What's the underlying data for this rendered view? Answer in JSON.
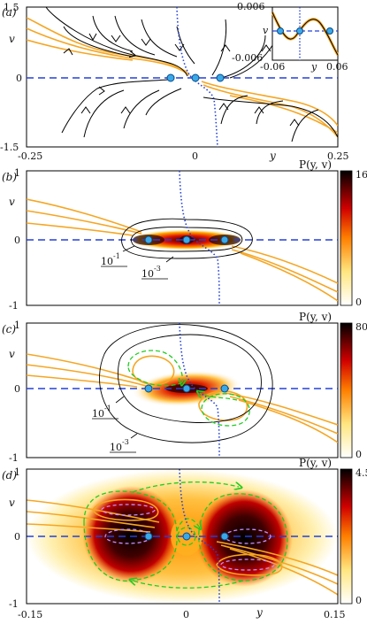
{
  "figure": {
    "panels": [
      {
        "id": "a",
        "label": "(a)",
        "ylabel": "v",
        "xlabel": "y",
        "x_ticks": [
          "-0.25",
          "0",
          "0.25"
        ],
        "y_ticks": [
          "1.5",
          "0",
          "-1.5"
        ],
        "inset": {
          "ylabel": "v",
          "xlabel": "y",
          "x_ticks": [
            "-0.06",
            "0.06"
          ],
          "y_ticks": [
            "0.006",
            "-0.006"
          ]
        }
      },
      {
        "id": "b",
        "label": "(b)",
        "ylabel": "v",
        "colorbar_title": "P(y, v)",
        "y_ticks": [
          "1",
          "0",
          "-1"
        ],
        "colorbar_ticks": [
          "160",
          "0"
        ],
        "contour_labels": [
          "10",
          "-1",
          "10",
          "-3"
        ]
      },
      {
        "id": "c",
        "label": "(c)",
        "ylabel": "v",
        "colorbar_title": "P(y, v)",
        "y_ticks": [
          "1",
          "0",
          "-1"
        ],
        "colorbar_ticks": [
          "80",
          "0"
        ],
        "contour_labels": [
          "10",
          "-1",
          "10",
          "-3"
        ]
      },
      {
        "id": "d",
        "label": "(d)",
        "ylabel": "v",
        "xlabel": "y",
        "colorbar_title": "P(y, v)",
        "y_ticks": [
          "1",
          "0",
          "-1"
        ],
        "x_ticks": [
          "-0.15",
          "0",
          "0.15"
        ],
        "colorbar_ticks": [
          "4.5",
          "0"
        ]
      }
    ],
    "colors": {
      "nullcline": "#f5a623",
      "separatrix": "#2340d8",
      "fixed_point": "#3aa9e8",
      "loop": "#22cc22",
      "small_loop": "#b07ae0"
    }
  }
}
